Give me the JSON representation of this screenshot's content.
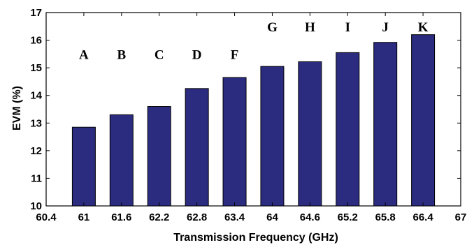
{
  "chart_data": {
    "type": "bar",
    "xlabel": "Transmission Frequency (GHz)",
    "ylabel": "EVM (%)",
    "xlim": [
      60.4,
      67
    ],
    "ylim": [
      10,
      17
    ],
    "xticks": [
      "60.4",
      "61",
      "61.6",
      "62.2",
      "62.8",
      "63.4",
      "64",
      "64.6",
      "65.2",
      "65.8",
      "66.4",
      "67"
    ],
    "yticks": [
      "10",
      "11",
      "12",
      "13",
      "14",
      "15",
      "16",
      "17"
    ],
    "x": [
      61,
      61.6,
      62.2,
      62.8,
      63.4,
      64,
      64.6,
      65.2,
      65.8,
      66.4
    ],
    "values": [
      12.85,
      13.3,
      13.6,
      14.25,
      14.65,
      15.05,
      15.22,
      15.55,
      15.92,
      16.2
    ],
    "bar_labels": [
      "A",
      "B",
      "C",
      "D",
      "F",
      "G",
      "H",
      "I",
      "J",
      "K"
    ],
    "bar_label_heights": [
      15.5,
      15.5,
      15.5,
      15.5,
      15.5,
      16.5,
      16.5,
      16.5,
      16.5,
      16.5
    ],
    "bar_color": "#2b2b80",
    "grid": false,
    "legend": "none"
  }
}
